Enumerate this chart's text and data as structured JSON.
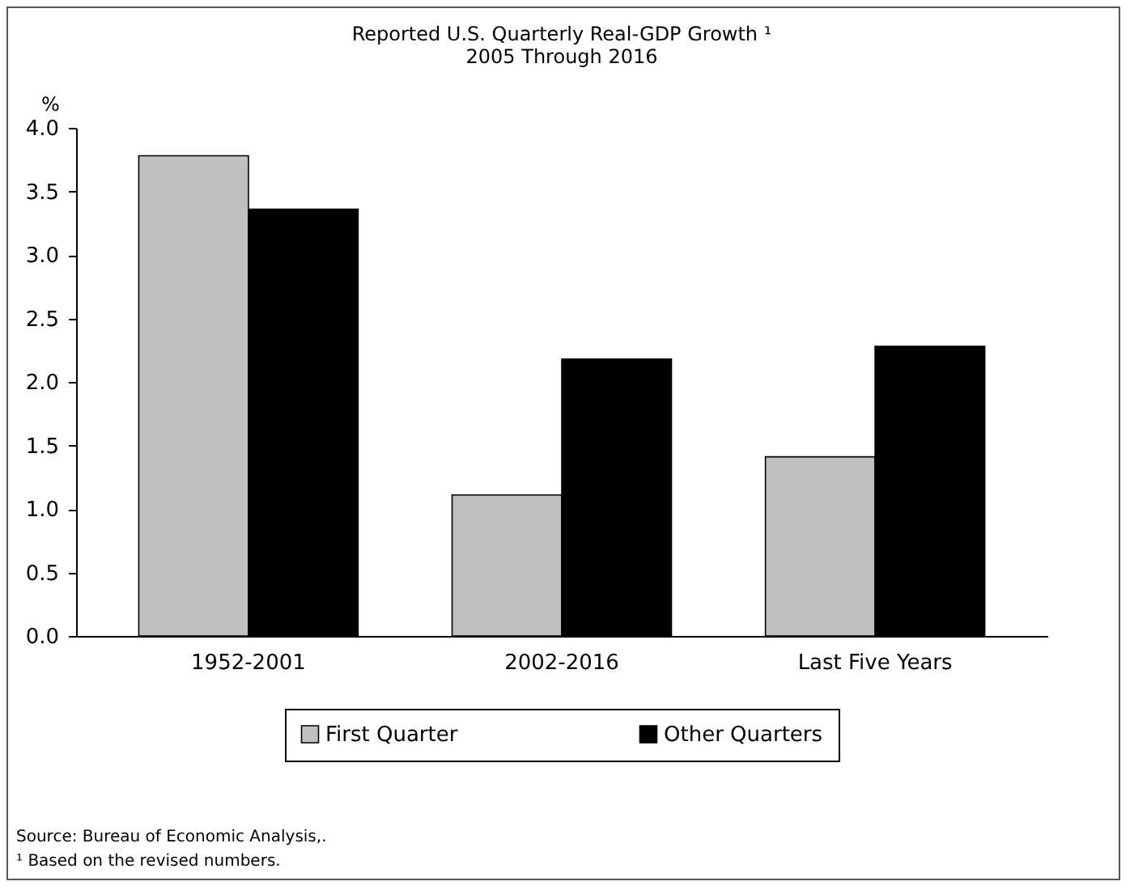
{
  "chart_data": {
    "type": "bar",
    "title": "Reported U.S. Quarterly Real-GDP Growth ¹",
    "subtitle": "2005 Through 2016",
    "ylabel": "%",
    "categories": [
      "1952-2001",
      "2002-2016",
      "Last Five Years"
    ],
    "series": [
      {
        "name": "First Quarter",
        "color": "#c0c0c0",
        "values": [
          3.78,
          1.11,
          1.41
        ]
      },
      {
        "name": "Other Quarters",
        "color": "#000000",
        "values": [
          3.36,
          2.18,
          2.28
        ]
      }
    ],
    "ylim": [
      0,
      4
    ],
    "yticks": [
      {
        "value": 0,
        "label": "0.0"
      },
      {
        "value": 0.5,
        "label": "0.5"
      },
      {
        "value": 1,
        "label": "1.0"
      },
      {
        "value": 1.5,
        "label": "1.5"
      },
      {
        "value": 2,
        "label": "2.0"
      },
      {
        "value": 2.5,
        "label": "2.5"
      },
      {
        "value": 3,
        "label": "3.0"
      },
      {
        "value": 3.5,
        "label": "3.5"
      },
      {
        "value": 4,
        "label": "4.0"
      }
    ],
    "grid": false,
    "legend": "bottom",
    "annotations": [
      "Source: Bureau of Economic Analysis,.",
      "¹ Based on the revised numbers."
    ]
  }
}
